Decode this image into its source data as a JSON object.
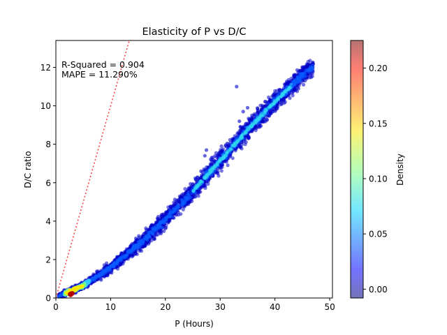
{
  "chart_data": {
    "type": "scatter",
    "title": "Elasticity of P vs D/C",
    "xlabel": "P (Hours)",
    "ylabel": "D/C ratio",
    "xlim": [
      0,
      50.5
    ],
    "ylim": [
      0,
      13.4
    ],
    "x_ticks": [
      0,
      10,
      20,
      30,
      40,
      50
    ],
    "y_ticks": [
      0,
      2,
      4,
      6,
      8,
      10,
      12
    ],
    "annotations": [
      "R-Squared = 0.904",
      "MAPE = 11.290%"
    ],
    "reference_line": {
      "style": "dotted",
      "color": "#ff4444",
      "slope": 1,
      "intercept": 0
    },
    "point_band": {
      "x": [
        0.5,
        5,
        10,
        15,
        20,
        25,
        30,
        35,
        40,
        45,
        47
      ],
      "y_center": [
        0.1,
        0.65,
        1.6,
        2.75,
        4.1,
        5.55,
        7.15,
        8.75,
        10.2,
        11.6,
        12.0
      ],
      "y_halfwidth": [
        0.15,
        0.25,
        0.35,
        0.45,
        0.55,
        0.6,
        0.65,
        0.65,
        0.6,
        0.55,
        0.5
      ]
    },
    "outliers": [
      {
        "x": 33.0,
        "y": 11.0
      },
      {
        "x": 34.2,
        "y": 9.7
      },
      {
        "x": 35.0,
        "y": 9.9
      },
      {
        "x": 35.8,
        "y": 9.5
      },
      {
        "x": 27.5,
        "y": 7.7
      },
      {
        "x": 30.2,
        "y": 7.6
      },
      {
        "x": 33.5,
        "y": 9.2
      },
      {
        "x": 26.5,
        "y": 6.6
      },
      {
        "x": 27.2,
        "y": 7.4
      },
      {
        "x": 24.5,
        "y": 5.5
      }
    ],
    "colorbar": {
      "label": "Density",
      "min": -0.008,
      "max": 0.225,
      "ticks": [
        "0.00",
        "0.05",
        "0.10",
        "0.15",
        "0.20"
      ],
      "tick_values": [
        0.0,
        0.05,
        0.1,
        0.15,
        0.2
      ],
      "colormap": "jet"
    }
  }
}
